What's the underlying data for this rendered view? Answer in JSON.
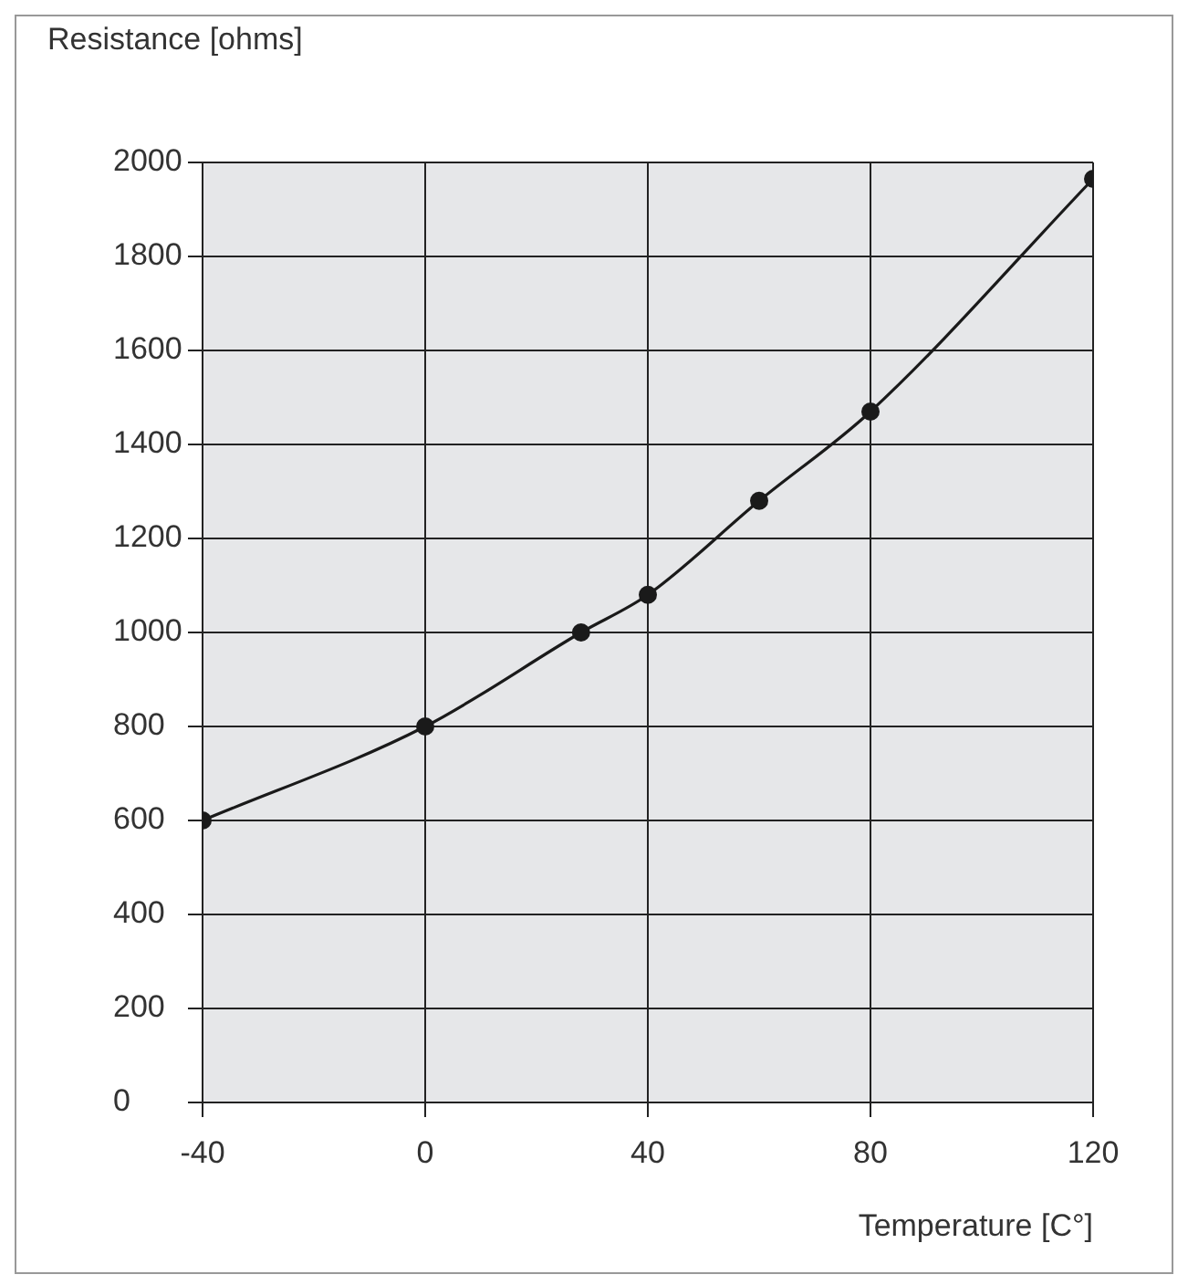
{
  "chart_data": {
    "type": "line",
    "xlabel": "Temperature [C°]",
    "ylabel": "Resistance [ohms]",
    "x": [
      -40,
      0,
      28,
      40,
      60,
      80,
      120
    ],
    "series": [
      {
        "color": "#1a1a1a",
        "values": [
          600,
          800,
          1000,
          1080,
          1280,
          1470,
          1965
        ]
      }
    ],
    "xlim": [
      -40,
      120
    ],
    "xticks": [
      -40,
      0,
      40,
      80,
      120
    ],
    "ylim": [
      0,
      2000
    ],
    "yticks": [
      0,
      200,
      400,
      600,
      800,
      1000,
      1200,
      1400,
      1600,
      1800,
      2000
    ],
    "grid": true,
    "marker": "circle",
    "line_style": "solid",
    "legend": false
  }
}
